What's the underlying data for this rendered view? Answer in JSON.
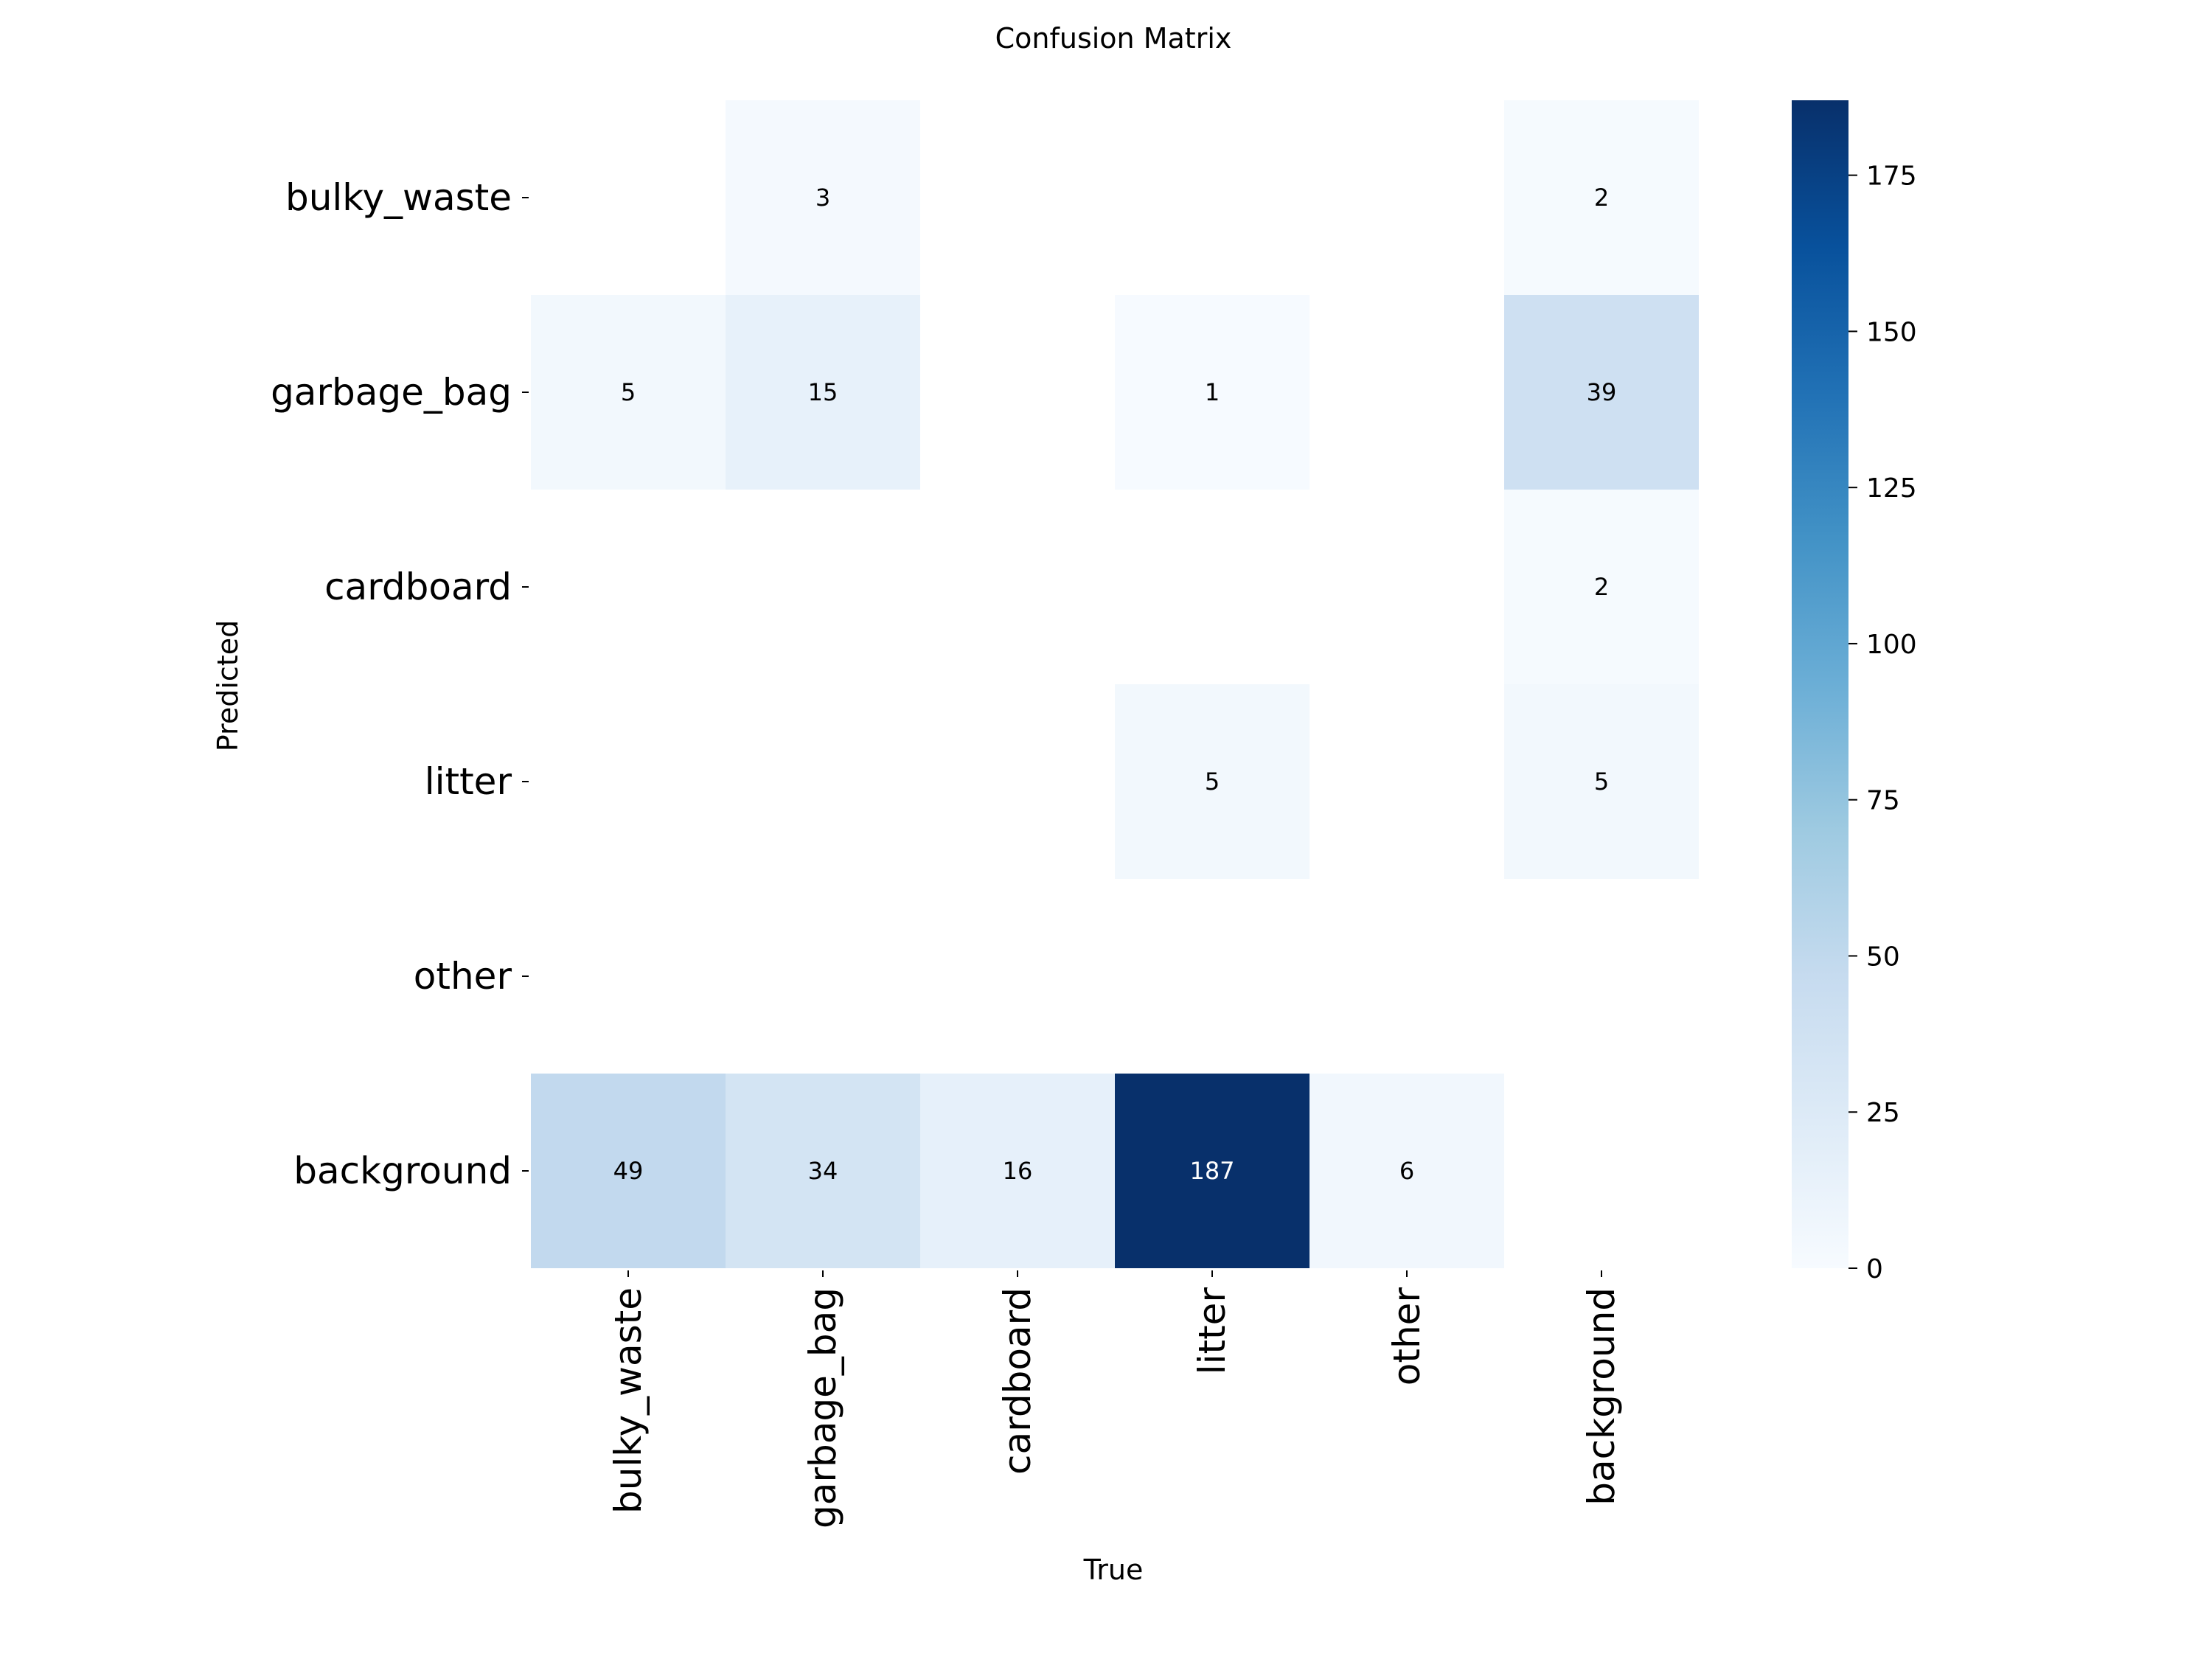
{
  "chart_data": {
    "type": "heatmap",
    "title": "Confusion Matrix",
    "xlabel": "True",
    "ylabel": "Predicted",
    "x_categories": [
      "bulky_waste",
      "garbage_bag",
      "cardboard",
      "litter",
      "other",
      "background"
    ],
    "y_categories": [
      "bulky_waste",
      "garbage_bag",
      "cardboard",
      "litter",
      "other",
      "background"
    ],
    "values": [
      [
        0,
        3,
        0,
        0,
        0,
        2
      ],
      [
        5,
        15,
        0,
        1,
        0,
        39
      ],
      [
        0,
        0,
        0,
        0,
        0,
        2
      ],
      [
        0,
        0,
        0,
        5,
        0,
        5
      ],
      [
        0,
        0,
        0,
        0,
        0,
        0
      ],
      [
        49,
        34,
        16,
        187,
        6,
        0
      ]
    ],
    "zero_cells_blank": true,
    "colormap": "Blues",
    "color_range": [
      0,
      187
    ],
    "colorbar_ticks": [
      0,
      25,
      50,
      75,
      100,
      125,
      150,
      175
    ]
  }
}
